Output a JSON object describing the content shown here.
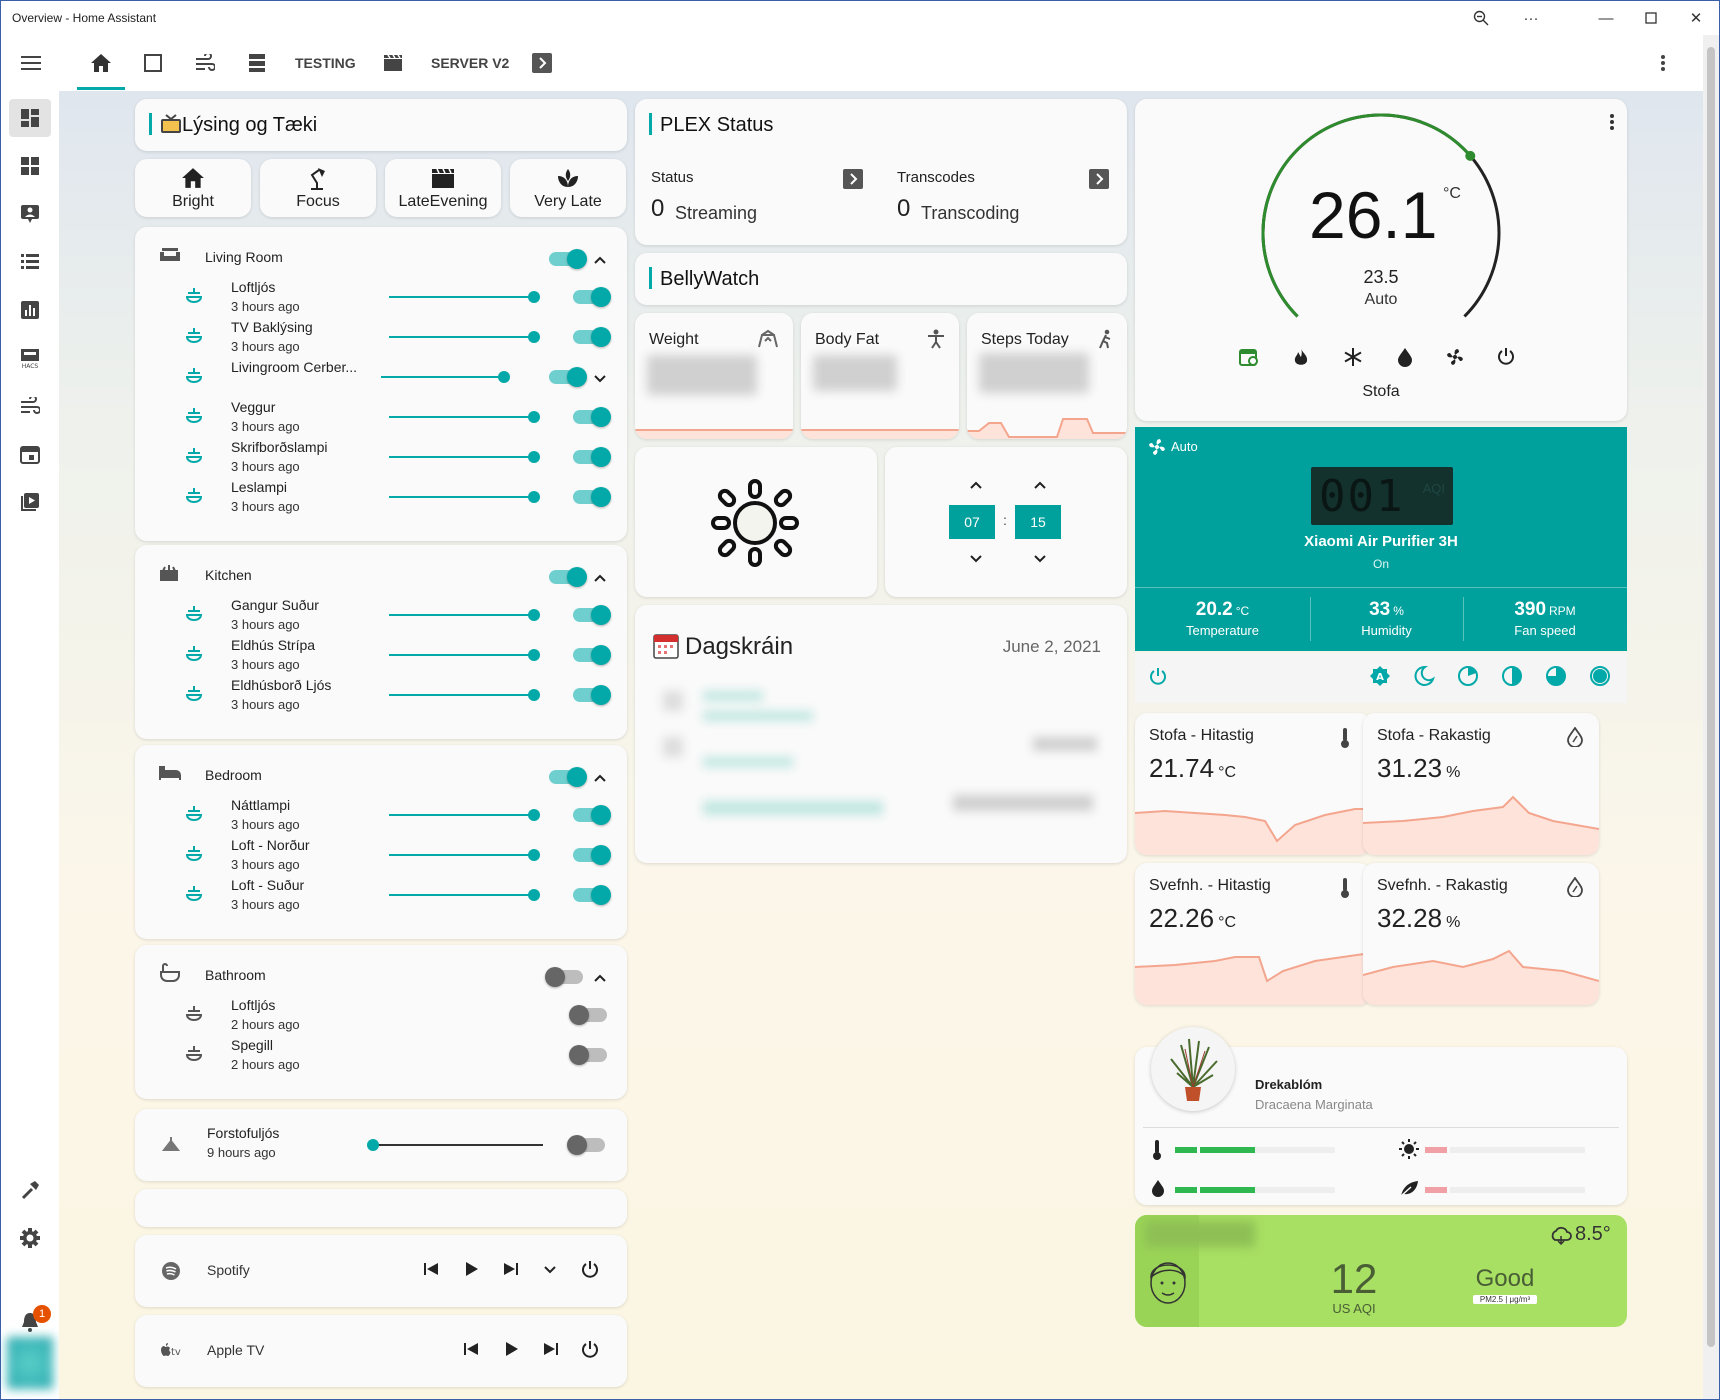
{
  "window": {
    "title": "Overview - Home Assistant"
  },
  "toolbar": {
    "tab_testing": "TESTING",
    "tab_server": "SERVER V2"
  },
  "lighting": {
    "title": "Lýsing og Tæki",
    "scenes": [
      {
        "label": "Bright",
        "icon": "home-icon"
      },
      {
        "label": "Focus",
        "icon": "desk-lamp-icon"
      },
      {
        "label": "LateEvening",
        "icon": "clapper-icon"
      },
      {
        "label": "Very Late",
        "icon": "spa-icon"
      }
    ]
  },
  "rooms": [
    {
      "name": "Living Room",
      "on": true,
      "expanded": true,
      "items": [
        {
          "name": "Loftljós",
          "time": "3 hours ago",
          "level": 0.94,
          "on": true
        },
        {
          "name": "TV Baklýsing",
          "time": "3 hours ago",
          "level": 0.94,
          "on": true
        },
        {
          "name": "Livingroom Cerber...",
          "time": "",
          "level": 0.8,
          "on": true
        },
        {
          "name": "Veggur",
          "time": "3 hours ago",
          "level": 0.94,
          "on": true
        },
        {
          "name": "Skrifborðslampi",
          "time": "3 hours ago",
          "level": 0.94,
          "on": true
        },
        {
          "name": "Leslampi",
          "time": "3 hours ago",
          "level": 0.94,
          "on": true
        }
      ]
    },
    {
      "name": "Kitchen",
      "on": true,
      "expanded": true,
      "items": [
        {
          "name": "Gangur Suður",
          "time": "3 hours ago",
          "level": 0.94,
          "on": true
        },
        {
          "name": "Eldhús Strípa",
          "time": "3 hours ago",
          "level": 0.94,
          "on": true
        },
        {
          "name": "Eldhúsborð Ljós",
          "time": "3 hours ago",
          "level": 0.94,
          "on": true
        }
      ]
    },
    {
      "name": "Bedroom",
      "on": true,
      "expanded": true,
      "items": [
        {
          "name": "Náttlampi",
          "time": "3 hours ago",
          "level": 0.94,
          "on": true
        },
        {
          "name": "Loft - Norður",
          "time": "3 hours ago",
          "level": 0.94,
          "on": true
        },
        {
          "name": "Loft - Suður",
          "time": "3 hours ago",
          "level": 0.94,
          "on": true
        }
      ]
    },
    {
      "name": "Bathroom",
      "on": false,
      "expanded": true,
      "items": [
        {
          "name": "Loftljós",
          "time": "2 hours ago",
          "on": false
        },
        {
          "name": "Spegill",
          "time": "2 hours ago",
          "on": false
        }
      ]
    }
  ],
  "forstofa": {
    "name": "Forstofuljós",
    "time": "9 hours ago",
    "level": 0,
    "on": false
  },
  "media": [
    {
      "name": "Spotify"
    },
    {
      "name": "Apple TV"
    }
  ],
  "plex": {
    "title": "PLEX Status",
    "status_label": "Status",
    "status_value": "0",
    "status_unit": "Streaming",
    "transcodes_label": "Transcodes",
    "transcodes_value": "0",
    "transcodes_unit": "Transcoding"
  },
  "belly": {
    "title": "BellyWatch",
    "weight": "Weight",
    "fat": "Body Fat",
    "steps": "Steps Today"
  },
  "alarm": {
    "hour": "07",
    "minute": "15",
    "sep": ":"
  },
  "agenda": {
    "title": "Dagskráin",
    "date": "June 2, 2021"
  },
  "thermostat": {
    "current": "26.1",
    "unit": "°C",
    "target": "23.5",
    "mode": "Auto",
    "name": "Stofa",
    "current_value": 26.1,
    "target_value": 23.5
  },
  "purifier": {
    "mode": "Auto",
    "aqi": "001",
    "aqi_label": "AQI",
    "name": "Xiaomi Air Purifier 3H",
    "state": "On",
    "temp": "20.2",
    "temp_unit": "°C",
    "temp_label": "Temperature",
    "hum": "33",
    "hum_unit": "%",
    "hum_label": "Humidity",
    "fan": "390",
    "fan_unit": "RPM",
    "fan_label": "Fan speed"
  },
  "sensors": [
    {
      "title": "Stofa - Hitastig",
      "value": "21.74",
      "unit": "°C"
    },
    {
      "title": "Stofa - Rakastig",
      "value": "31.23",
      "unit": "%"
    },
    {
      "title": "Svefnh. - Hitastig",
      "value": "22.26",
      "unit": "°C"
    },
    {
      "title": "Svefnh. - Rakastig",
      "value": "32.28",
      "unit": "%"
    }
  ],
  "plant": {
    "name": "Drekablóm",
    "species": "Dracaena Marginata",
    "temperature_level": 0.5,
    "moisture_level": 0.5,
    "light_level": 0.15,
    "conductivity_level": 0.15
  },
  "aqi": {
    "temp": "8.5°",
    "value": "12",
    "label": "US AQI",
    "quality": "Good",
    "pollutant": "PM2.5 | μg/m³"
  },
  "notifications": {
    "count": "1"
  },
  "colors": {
    "accent": "#03a9a8",
    "purifier_bg": "#00a19c",
    "aqi_bg": "#a8e063",
    "graph": "#f4a58e"
  }
}
